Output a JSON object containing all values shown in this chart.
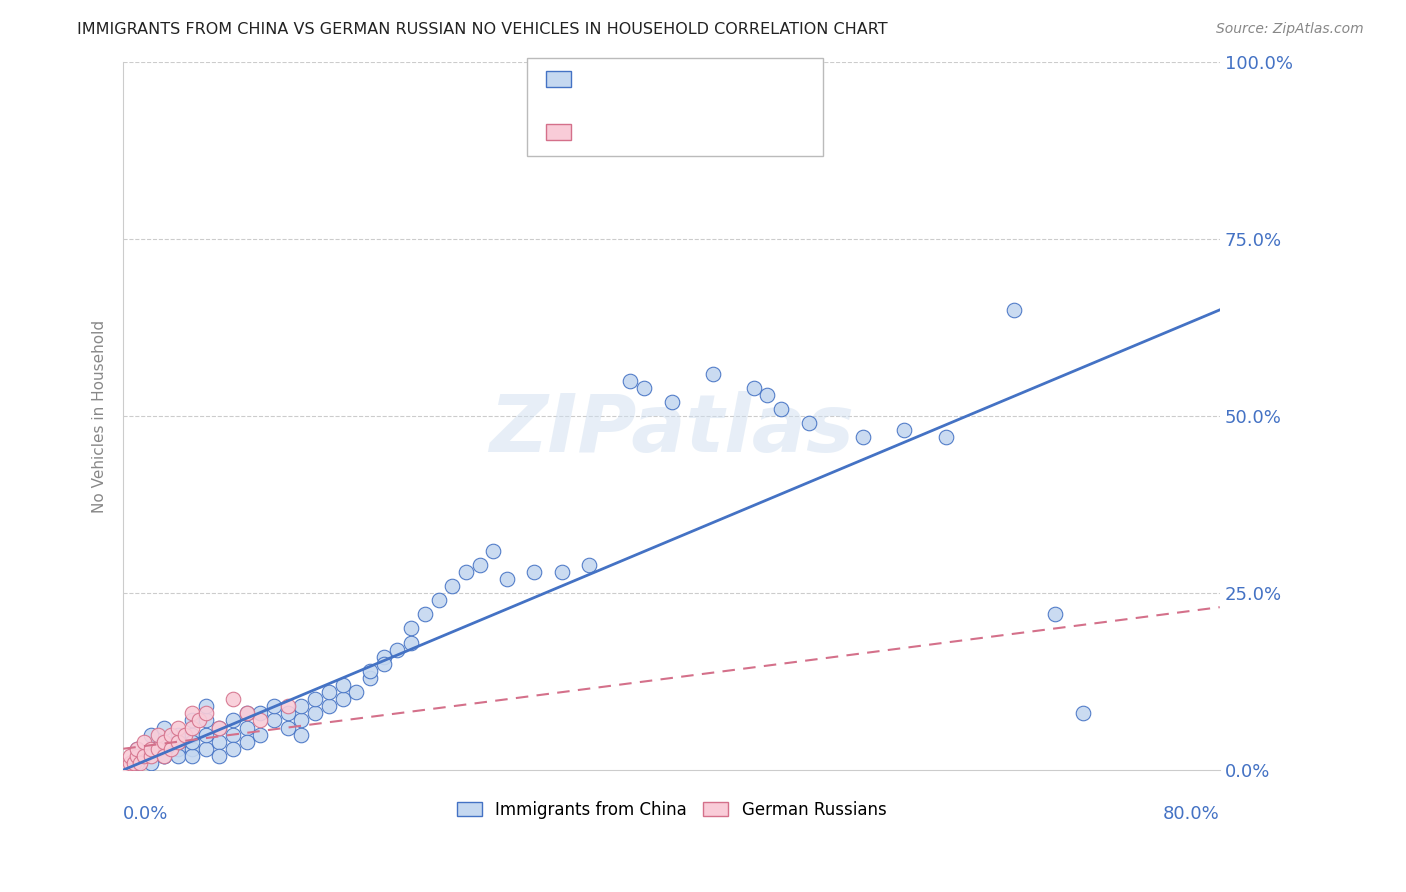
{
  "title": "IMMIGRANTS FROM CHINA VS GERMAN RUSSIAN NO VEHICLES IN HOUSEHOLD CORRELATION CHART",
  "source": "Source: ZipAtlas.com",
  "ylabel": "No Vehicles in Household",
  "xlim": [
    0,
    80
  ],
  "ylim": [
    0,
    100
  ],
  "china_color": "#c5d8f0",
  "china_edge_color": "#4472c4",
  "china_line_color": "#4472c4",
  "german_color": "#f9ccd8",
  "german_edge_color": "#d4708a",
  "german_line_color": "#d4708a",
  "watermark": "ZIPatlas",
  "legend_labels": [
    "Immigrants from China",
    "German Russians"
  ],
  "ytick_labels": [
    "0.0%",
    "25.0%",
    "50.0%",
    "75.0%",
    "100.0%"
  ],
  "ytick_values": [
    0,
    25,
    50,
    75,
    100
  ],
  "china_trend_x": [
    0,
    80
  ],
  "china_trend_y": [
    0,
    65
  ],
  "german_trend_x": [
    0,
    80
  ],
  "german_trend_y": [
    3,
    23
  ],
  "china_x": [
    1,
    1,
    2,
    2,
    2,
    3,
    3,
    3,
    3,
    4,
    4,
    4,
    4,
    5,
    5,
    5,
    5,
    5,
    6,
    6,
    6,
    6,
    7,
    7,
    7,
    8,
    8,
    8,
    9,
    9,
    9,
    10,
    10,
    11,
    11,
    12,
    12,
    13,
    13,
    13,
    14,
    14,
    15,
    15,
    16,
    16,
    17,
    18,
    18,
    19,
    19,
    20,
    21,
    21,
    22,
    23,
    24,
    25,
    26,
    27,
    28,
    30,
    32,
    34,
    37,
    38,
    40,
    43,
    46,
    47,
    48,
    50,
    54,
    57,
    60,
    65,
    68,
    70
  ],
  "china_y": [
    1,
    3,
    1,
    3,
    5,
    2,
    4,
    6,
    2,
    3,
    5,
    2,
    4,
    3,
    5,
    7,
    2,
    4,
    3,
    5,
    7,
    9,
    4,
    6,
    2,
    5,
    7,
    3,
    6,
    8,
    4,
    5,
    8,
    7,
    9,
    6,
    8,
    5,
    7,
    9,
    8,
    10,
    9,
    11,
    10,
    12,
    11,
    13,
    14,
    16,
    15,
    17,
    18,
    20,
    22,
    24,
    26,
    28,
    29,
    31,
    27,
    28,
    28,
    29,
    55,
    54,
    52,
    56,
    54,
    53,
    51,
    49,
    47,
    48,
    47,
    65,
    22,
    8
  ],
  "german_x": [
    0.3,
    0.5,
    0.5,
    0.8,
    1,
    1,
    1.2,
    1.5,
    1.5,
    2,
    2,
    2.5,
    2.5,
    3,
    3,
    3.5,
    3.5,
    4,
    4,
    4.5,
    5,
    5,
    5.5,
    6,
    7,
    8,
    9,
    10,
    12
  ],
  "german_y": [
    0,
    1,
    2,
    1,
    2,
    3,
    1,
    2,
    4,
    2,
    3,
    3,
    5,
    4,
    2,
    3,
    5,
    4,
    6,
    5,
    6,
    8,
    7,
    8,
    6,
    10,
    8,
    7,
    9
  ]
}
